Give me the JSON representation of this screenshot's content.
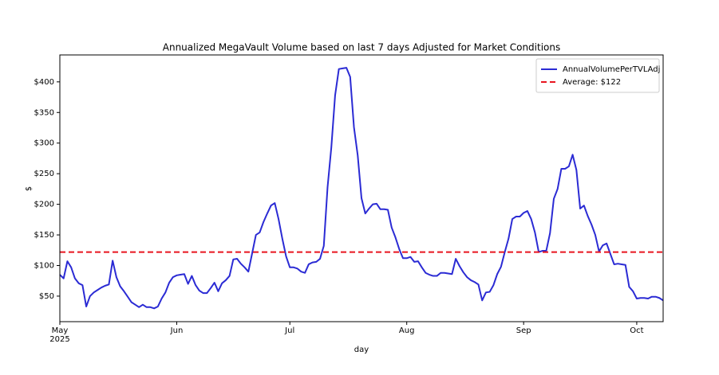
{
  "chart_data": {
    "type": "line",
    "title": "Annualized MegaVault Volume based on last 7 days Adjusted for Market Conditions",
    "x_label": "day",
    "y_label": "$",
    "x_sublabel": "2025",
    "categories": [
      "May",
      null,
      null,
      null,
      null,
      null,
      null,
      null,
      null,
      null,
      null,
      null,
      null,
      null,
      null,
      null,
      null,
      null,
      null,
      null,
      null,
      null,
      null,
      null,
      null,
      null,
      null,
      null,
      null,
      null,
      null,
      "Jun",
      null,
      null,
      null,
      null,
      null,
      null,
      null,
      null,
      null,
      null,
      null,
      null,
      null,
      null,
      null,
      null,
      null,
      null,
      null,
      null,
      null,
      null,
      null,
      null,
      null,
      null,
      null,
      null,
      null,
      "Jul",
      null,
      null,
      null,
      null,
      null,
      null,
      null,
      null,
      null,
      null,
      null,
      null,
      null,
      null,
      null,
      null,
      null,
      null,
      null,
      null,
      null,
      null,
      null,
      null,
      null,
      null,
      null,
      null,
      null,
      null,
      "Aug",
      null,
      null,
      null,
      null,
      null,
      null,
      null,
      null,
      null,
      null,
      null,
      null,
      null,
      null,
      null,
      null,
      null,
      null,
      null,
      null,
      null,
      null,
      null,
      null,
      null,
      null,
      null,
      null,
      null,
      null,
      "Sep",
      null,
      null,
      null,
      null,
      null,
      null,
      null,
      null,
      null,
      null,
      null,
      null,
      null,
      null,
      null,
      null,
      null,
      null,
      null,
      null,
      null,
      null,
      null,
      null,
      null,
      null,
      null,
      null,
      null,
      "Oct",
      null,
      null,
      null,
      null,
      null,
      null,
      null
    ],
    "series": [
      {
        "name": "AnnualVolumePerTVLAdj",
        "color": "#2b2bd4",
        "values": [
          85,
          79,
          107,
          97,
          79,
          71,
          68,
          33,
          50,
          56,
          60,
          64,
          67,
          69,
          108,
          81,
          66,
          58,
          49,
          40,
          36,
          32,
          36,
          32,
          32,
          30,
          33,
          46,
          56,
          72,
          81,
          84,
          85,
          86,
          70,
          83,
          68,
          59,
          55,
          55,
          63,
          72,
          58,
          71,
          76,
          83,
          110,
          111,
          103,
          97,
          90,
          120,
          150,
          154,
          171,
          185,
          198,
          202,
          176,
          144,
          115,
          97,
          97,
          95,
          90,
          88,
          102,
          105,
          106,
          111,
          132,
          228,
          293,
          378,
          421,
          422,
          423,
          408,
          326,
          280,
          210,
          185,
          193,
          200,
          201,
          192,
          192,
          191,
          162,
          146,
          127,
          112,
          112,
          114,
          106,
          107,
          97,
          88,
          85,
          83,
          83,
          88,
          88,
          87,
          86,
          111,
          99,
          89,
          81,
          76,
          73,
          69,
          43,
          56,
          57,
          68,
          86,
          98,
          122,
          144,
          176,
          180,
          180,
          186,
          189,
          176,
          154,
          122,
          124,
          124,
          153,
          209,
          225,
          258,
          258,
          262,
          281,
          256,
          193,
          198,
          181,
          167,
          150,
          123,
          133,
          136,
          119,
          102,
          103,
          102,
          101,
          65,
          58,
          46,
          47,
          47,
          46,
          49,
          49,
          47,
          43
        ]
      }
    ],
    "hlines": [
      {
        "name": "Average: $122",
        "value": 122,
        "color": "#e8141e",
        "dashed": true
      }
    ],
    "ylim": [
      8.3,
      444
    ],
    "yticks": [
      {
        "value": 50,
        "label": "$50"
      },
      {
        "value": 100,
        "label": "$100"
      },
      {
        "value": 150,
        "label": "$150"
      },
      {
        "value": 200,
        "label": "$200"
      },
      {
        "value": 250,
        "label": "$250"
      },
      {
        "value": 300,
        "label": "$300"
      },
      {
        "value": 350,
        "label": "$350"
      },
      {
        "value": 400,
        "label": "$400"
      }
    ],
    "legend": "upper right"
  }
}
